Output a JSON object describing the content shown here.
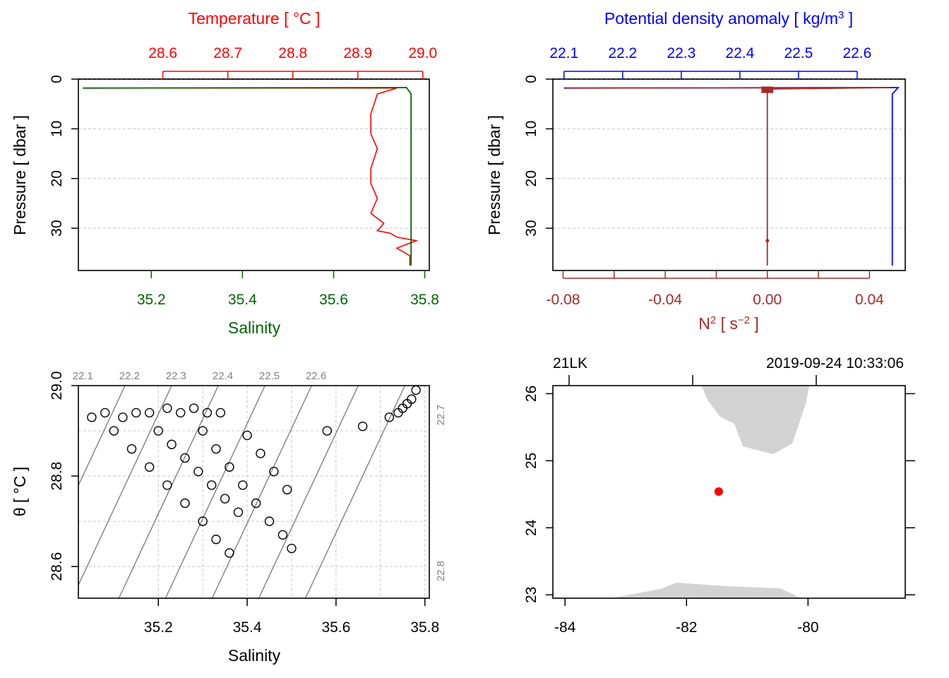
{
  "colors": {
    "temperature": "#ff0000",
    "salinity": "#006400",
    "density": "#0000ff",
    "n2": "#a52a2a",
    "axis": "#000000",
    "grid": "#c8c8c8",
    "isopycnal": "#808080",
    "land": "#d3d3d3",
    "station": "#ff0000"
  },
  "chart_data": [
    {
      "type": "line",
      "panel": "TS profile",
      "title": "",
      "top_axis_label": "Temperature [ °C ]",
      "top_ticks": [
        "28.6",
        "28.7",
        "28.8",
        "28.9",
        "29.0"
      ],
      "bottom_axis_label": "Salinity",
      "bottom_ticks": [
        "35.2",
        "35.4",
        "35.6",
        "35.8"
      ],
      "ylabel": "Pressure [ dbar ]",
      "y_ticks": [
        "0",
        "10",
        "20",
        "30"
      ],
      "temperature_range": [
        28.47,
        29.01
      ],
      "salinity_range": [
        35.04,
        35.81
      ],
      "pressure_range": [
        0,
        38.5
      ],
      "grid": true,
      "series": [
        {
          "name": "Temperature",
          "x": [
            28.6,
            28.96,
            28.93,
            28.92,
            28.92,
            28.93,
            28.92,
            28.92,
            28.93,
            28.92,
            28.94,
            28.93,
            28.95,
            28.96,
            28.99,
            28.96,
            28.98,
            28.98
          ],
          "y": [
            1.8,
            1.8,
            3.0,
            7.0,
            11.0,
            14.0,
            18.0,
            21.0,
            24.0,
            27.0,
            29.0,
            30.5,
            31.0,
            31.8,
            32.5,
            34.0,
            35.5,
            37.5
          ]
        },
        {
          "name": "Salinity",
          "x": [
            35.05,
            35.76,
            35.77,
            35.77,
            35.77,
            35.77,
            35.77,
            35.77,
            35.77,
            35.77,
            35.77
          ],
          "y": [
            1.8,
            1.7,
            3.0,
            8.0,
            12.0,
            18.0,
            24.0,
            29.0,
            31.0,
            33.0,
            37.5
          ]
        }
      ]
    },
    {
      "type": "line",
      "panel": "Density and N2 profile",
      "title": "",
      "top_axis_label": "Potential density anomaly [ kg/m3 ]",
      "top_ticks": [
        "22.1",
        "22.2",
        "22.3",
        "22.4",
        "22.5",
        "22.6"
      ],
      "bottom_axis_label": "N2 [ s-2 ]",
      "bottom_ticks": [
        "-0.08",
        "-0.04",
        "0.00",
        "0.04"
      ],
      "ylabel": "Pressure [ dbar ]",
      "y_ticks": [
        "0",
        "10",
        "20",
        "30"
      ],
      "density_range": [
        22.081,
        22.682
      ],
      "n2_range": [
        -0.084,
        0.054
      ],
      "pressure_range": [
        0,
        38.5
      ],
      "grid": true,
      "series": [
        {
          "name": "Potential density anomaly",
          "x": [
            22.1,
            22.67,
            22.66,
            22.66,
            22.66,
            22.66,
            22.66,
            22.66,
            22.66,
            22.66
          ],
          "y": [
            1.8,
            1.7,
            3.0,
            8.0,
            14.0,
            20.0,
            26.0,
            30.0,
            34.0,
            37.5
          ]
        },
        {
          "name": "N2",
          "x": [
            -0.079,
            0.048,
            0.0,
            0.0,
            0.0,
            0.0,
            0.0
          ],
          "y": [
            1.8,
            1.7,
            2.0,
            10.0,
            20.0,
            32.5,
            37.5
          ]
        }
      ]
    },
    {
      "type": "scatter",
      "panel": "TS diagram",
      "title": "",
      "xlabel": "Salinity",
      "ylabel": "θ [ °C ]",
      "x_ticks": [
        "35.2",
        "35.4",
        "35.6",
        "35.8"
      ],
      "y_ticks": [
        "28.6",
        "28.8",
        "29.0"
      ],
      "xlim": [
        35.02,
        35.81
      ],
      "ylim": [
        28.53,
        29.0
      ],
      "isopycnal_labels": [
        "22.1",
        "22.2",
        "22.3",
        "22.4",
        "22.5",
        "22.6",
        "22.7",
        "22.8"
      ],
      "grid": true,
      "x": [
        35.05,
        35.08,
        35.12,
        35.15,
        35.18,
        35.22,
        35.25,
        35.28,
        35.31,
        35.34,
        35.1,
        35.14,
        35.18,
        35.22,
        35.26,
        35.3,
        35.33,
        35.36,
        35.2,
        35.23,
        35.26,
        35.29,
        35.32,
        35.35,
        35.38,
        35.3,
        35.33,
        35.36,
        35.39,
        35.42,
        35.45,
        35.48,
        35.5,
        35.4,
        35.43,
        35.46,
        35.49,
        35.58,
        35.66,
        35.72,
        35.75,
        35.77,
        35.78,
        35.76,
        35.74
      ],
      "y": [
        28.93,
        28.94,
        28.93,
        28.94,
        28.94,
        28.95,
        28.94,
        28.95,
        28.94,
        28.94,
        28.9,
        28.86,
        28.82,
        28.78,
        28.74,
        28.7,
        28.66,
        28.63,
        28.9,
        28.87,
        28.84,
        28.81,
        28.78,
        28.75,
        28.72,
        28.9,
        28.86,
        28.82,
        28.78,
        28.74,
        28.7,
        28.67,
        28.64,
        28.89,
        28.85,
        28.81,
        28.77,
        28.9,
        28.91,
        28.93,
        28.95,
        28.97,
        28.99,
        28.96,
        28.94
      ]
    },
    {
      "type": "scatter",
      "panel": "Station map",
      "title": "",
      "station_label": "21LK",
      "datetime_label": "2019-09-24 10:33:06",
      "x_ticks": [
        "-84",
        "-82",
        "-80"
      ],
      "y_ticks": [
        "23",
        "24",
        "25",
        "26"
      ],
      "xlim": [
        -84.2,
        -78.4
      ],
      "ylim": [
        22.95,
        26.12
      ],
      "grid": false,
      "station": {
        "lon": -81.47,
        "lat": 24.54
      }
    }
  ]
}
